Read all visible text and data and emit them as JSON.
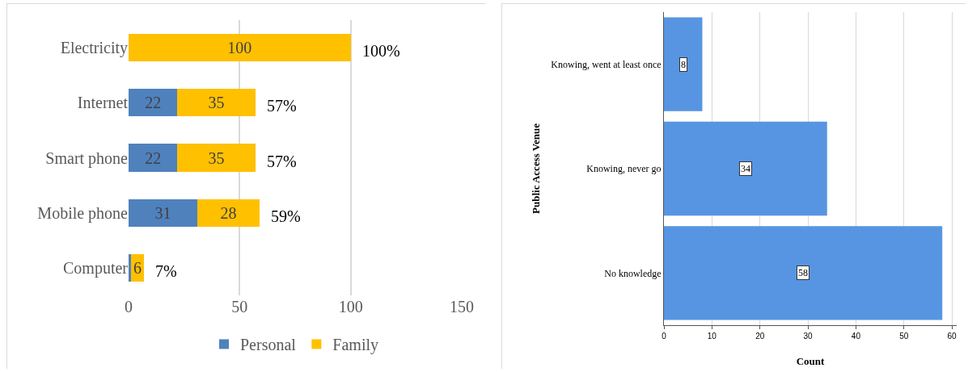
{
  "chart_data": [
    {
      "type": "bar",
      "orientation": "horizontal",
      "stacked": true,
      "categories": [
        "Electricity",
        "Internet",
        "Smart phone",
        "Mobile phone",
        "Computer"
      ],
      "series": [
        {
          "name": "Personal",
          "color": "#4f81bd",
          "values": [
            0,
            22,
            22,
            31,
            1
          ],
          "value_labels": [
            null,
            "22",
            "22",
            "31",
            null
          ]
        },
        {
          "name": "Family",
          "color": "#ffc000",
          "values": [
            100,
            35,
            35,
            28,
            6
          ],
          "value_labels": [
            "100",
            "35",
            "35",
            "28",
            "6"
          ]
        }
      ],
      "totals": [
        "100%",
        "57%",
        "57%",
        "59%",
        "7%"
      ],
      "xlim": [
        0,
        150
      ],
      "xticks": [
        0,
        50,
        100,
        150
      ],
      "grid": "x",
      "legend": "bottom"
    },
    {
      "type": "bar",
      "orientation": "horizontal",
      "categories": [
        "Knowing, went at least once",
        "Knowing, never go",
        "No knowledge"
      ],
      "values": [
        8,
        34,
        58
      ],
      "color": "#5795e2",
      "data_labels": true,
      "xlabel": "Count",
      "ylabel": "Public Access Venue",
      "xlim": [
        0,
        61
      ],
      "xticks": [
        0,
        10,
        20,
        30,
        40,
        50,
        60
      ],
      "grid": "x",
      "legend": false
    }
  ]
}
